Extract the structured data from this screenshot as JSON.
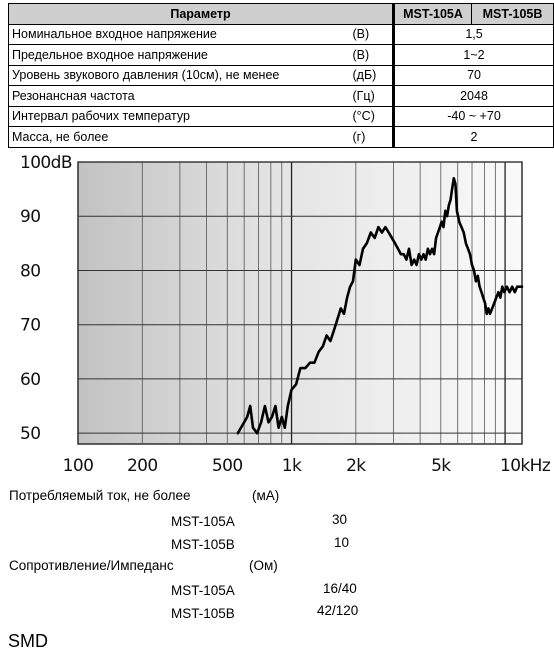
{
  "table": {
    "headers": {
      "param": "Параметр",
      "col_a": "MST-105A",
      "col_b": "MST-105B"
    },
    "rows": [
      {
        "name": "Номинальное входное напряжение",
        "unit": "(В)",
        "value": "1,5"
      },
      {
        "name": "Предельное входное напряжение",
        "unit": "(В)",
        "value": "1~2"
      },
      {
        "name": "Уровень звукового давления (10см), не менее",
        "unit": "(дБ)",
        "value": "70"
      },
      {
        "name": "Резонансная частота",
        "unit": "(Гц)",
        "value": "2048"
      },
      {
        "name": "Интервал рабочих температур",
        "unit": "(°C)",
        "value": "-40 ~ +70"
      },
      {
        "name": "Масса, не более",
        "unit": "(г)",
        "value": "2"
      }
    ]
  },
  "chart_data": {
    "type": "line",
    "x_scale": "log",
    "xlim": [
      100,
      12000
    ],
    "ylim": [
      48,
      100
    ],
    "grid": true,
    "y_ticks": [
      {
        "value": 100,
        "label": "100dB"
      },
      {
        "value": 90,
        "label": "90"
      },
      {
        "value": 80,
        "label": "80"
      },
      {
        "value": 70,
        "label": "70"
      },
      {
        "value": 60,
        "label": "60"
      },
      {
        "value": 50,
        "label": "50"
      }
    ],
    "x_ticks": [
      {
        "value": 100,
        "label": "100"
      },
      {
        "value": 200,
        "label": "200"
      },
      {
        "value": 500,
        "label": "500"
      },
      {
        "value": 1000,
        "label": "1k"
      },
      {
        "value": 2000,
        "label": "2k"
      },
      {
        "value": 5000,
        "label": "5k"
      },
      {
        "value": 10000,
        "label": "10kHz"
      }
    ],
    "series": [
      {
        "color": "#000000",
        "x": [
          560,
          590,
          620,
          640,
          660,
          690,
          720,
          750,
          780,
          810,
          840,
          870,
          900,
          930,
          960,
          1000,
          1050,
          1100,
          1160,
          1220,
          1280,
          1340,
          1400,
          1460,
          1520,
          1580,
          1640,
          1700,
          1760,
          1820,
          1880,
          1940,
          2000,
          2080,
          2160,
          2250,
          2350,
          2450,
          2550,
          2650,
          2750,
          2850,
          2950,
          3050,
          3150,
          3250,
          3350,
          3450,
          3550,
          3650,
          3750,
          3850,
          3950,
          4050,
          4150,
          4250,
          4350,
          4450,
          4550,
          4650,
          4750,
          4850,
          4950,
          5050,
          5150,
          5250,
          5350,
          5450,
          5550,
          5650,
          5750,
          5850,
          5950,
          6100,
          6250,
          6400,
          6550,
          6700,
          6850,
          7000,
          7150,
          7300,
          7450,
          7600,
          7750,
          7900,
          8050,
          8200,
          8350,
          8500,
          8700,
          8900,
          9100,
          9300,
          9500,
          9700,
          9900,
          10200,
          10500,
          10800,
          11100,
          11400,
          11700,
          12000
        ],
        "y": [
          50,
          51.5,
          53,
          55,
          51,
          50,
          52,
          55,
          52,
          53,
          55,
          51,
          53,
          51,
          55,
          58,
          59,
          62,
          62,
          63,
          63,
          65,
          66,
          68,
          67,
          69,
          71,
          73,
          72,
          75,
          77,
          78,
          82,
          81,
          84,
          85,
          87,
          86,
          88,
          87,
          88,
          87,
          86,
          85,
          84,
          83,
          83,
          82,
          84,
          81,
          82,
          81,
          83,
          82,
          83,
          82,
          84,
          83,
          84,
          83,
          86,
          87,
          88,
          89,
          88,
          91,
          90,
          92,
          93,
          95,
          97,
          96,
          91,
          89,
          88,
          87,
          85,
          84,
          83,
          81,
          80,
          78,
          79,
          77,
          76,
          75,
          74,
          72,
          73,
          72,
          73,
          74,
          75,
          76,
          75,
          77,
          76,
          77,
          76,
          77,
          76,
          77,
          77,
          77
        ]
      }
    ]
  },
  "current": {
    "label": "Потребляемый ток, не более",
    "unit": "(мА)",
    "items": [
      {
        "model": "MST-105A",
        "value": "30"
      },
      {
        "model": "MST-105B",
        "value": "10"
      }
    ]
  },
  "impedance": {
    "label": "Сопротивление/Импеданс",
    "unit": "(Ом)",
    "items": [
      {
        "model": "MST-105A",
        "value": "16/40"
      },
      {
        "model": "MST-105B",
        "value": "42/120"
      }
    ]
  },
  "footer": {
    "mount": "SMD"
  }
}
